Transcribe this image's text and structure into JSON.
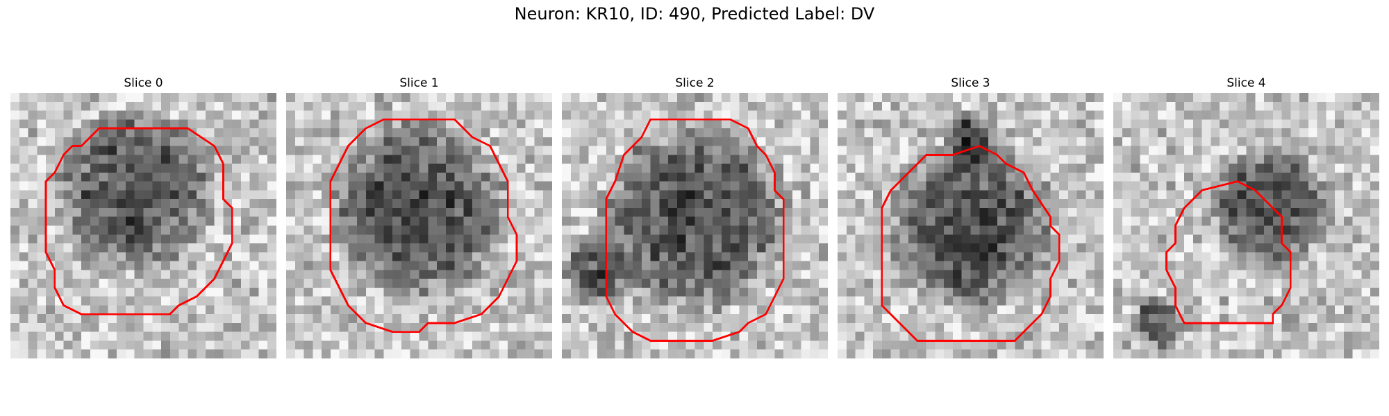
{
  "figure": {
    "title": "Neuron: KR10, ID: 490, Predicted Label: DV"
  },
  "panels": [
    {
      "title": "Slice 0"
    },
    {
      "title": "Slice 1"
    },
    {
      "title": "Slice 2"
    },
    {
      "title": "Slice 3"
    },
    {
      "title": "Slice 4"
    }
  ],
  "colors": {
    "outline": "#ff0000"
  }
}
